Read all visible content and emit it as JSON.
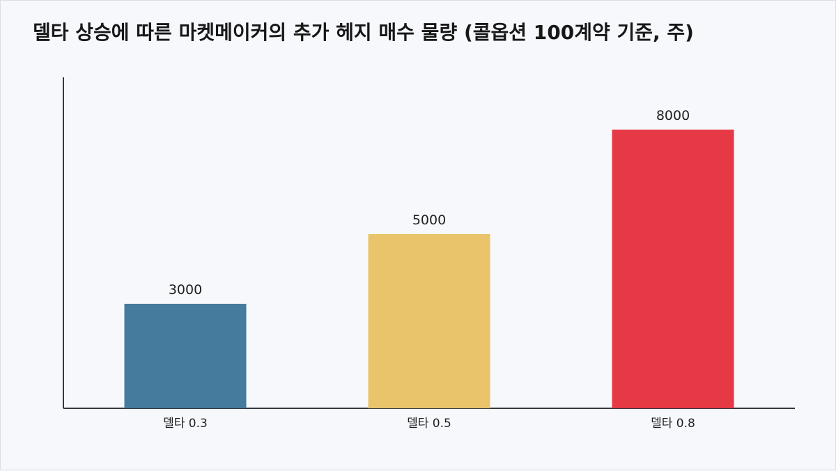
{
  "chart_data": {
    "type": "bar",
    "title": "델타 상승에 따른 마켓메이커의 추가 헤지 매수 물량 (콜옵션 100계약 기준, 주)",
    "categories": [
      "델타 0.3",
      "델타 0.5",
      "델타 0.8"
    ],
    "values": [
      3000,
      5000,
      8000
    ],
    "value_labels": [
      "3000",
      "5000",
      "8000"
    ],
    "colors": [
      "#457b9d",
      "#e9c46a",
      "#e63946"
    ],
    "xlabel": "",
    "ylabel": "",
    "ylim": [
      0,
      9500
    ],
    "grid": false,
    "legend": "none"
  }
}
